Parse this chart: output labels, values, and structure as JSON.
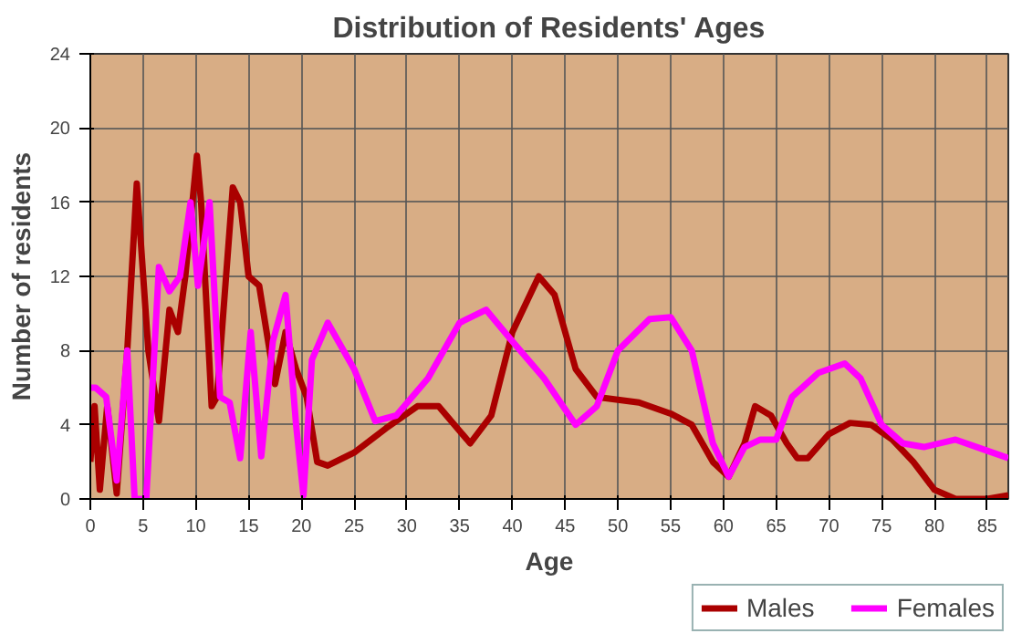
{
  "chart_data": {
    "type": "line",
    "title": "Distribution of Residents' Ages",
    "xlabel": "Age",
    "ylabel": "Number of residents",
    "xlim": [
      0,
      87
    ],
    "xticks": [
      0,
      5,
      10,
      15,
      20,
      25,
      30,
      35,
      40,
      45,
      50,
      55,
      60,
      65,
      70,
      75,
      80,
      85
    ],
    "ylim": [
      0,
      24
    ],
    "yticks": [
      0,
      4,
      8,
      12,
      16,
      20,
      24
    ],
    "grid": true,
    "legend": "bottom",
    "series": [
      {
        "name": "Males",
        "color": "#aa0000",
        "x": [
          0,
          0.4,
          0.9,
          1.6,
          2.5,
          3.5,
          4.4,
          5.5,
          6.5,
          7.5,
          8.3,
          9,
          10.1,
          10.5,
          11.5,
          12,
          13.5,
          14.2,
          15,
          16,
          17.5,
          18.5,
          19.5,
          20.5,
          21.5,
          22.5,
          25,
          28,
          31,
          33,
          36,
          38,
          40,
          42.5,
          44,
          46,
          48,
          52,
          55,
          57,
          59,
          60.5,
          62,
          63,
          64.5,
          66,
          67,
          68,
          70,
          72,
          74,
          76,
          78,
          80,
          82,
          85,
          87
        ],
        "values": [
          2,
          5,
          0.5,
          5,
          0.3,
          8,
          17,
          8,
          4.2,
          10.2,
          9,
          12,
          18.5,
          16,
          5,
          5.5,
          16.8,
          16,
          12,
          11.5,
          6.2,
          9,
          7,
          5.5,
          2,
          1.8,
          2.5,
          3.8,
          5,
          5,
          3,
          4.5,
          9,
          12,
          11,
          7,
          5.5,
          5.2,
          4.6,
          4,
          2,
          1.2,
          3,
          5,
          4.5,
          3,
          2.2,
          2.2,
          3.5,
          4.1,
          4,
          3.2,
          2,
          0.5,
          0,
          0,
          0.2
        ]
      },
      {
        "name": "Females",
        "color": "#ff00ff",
        "x": [
          0,
          0.5,
          1.5,
          2.5,
          3.5,
          4.2,
          5.3,
          6.5,
          7.5,
          8.5,
          9.5,
          10.2,
          11.3,
          12.3,
          13.2,
          14.2,
          15.2,
          16.2,
          17.3,
          18.5,
          19.5,
          20.2,
          21,
          22.5,
          25,
          27,
          29,
          32,
          35,
          37.5,
          40,
          43,
          46,
          48,
          50,
          53,
          55,
          57,
          59,
          60.5,
          62,
          63.5,
          65,
          66.5,
          69,
          71.5,
          73,
          75,
          77,
          79,
          82,
          85,
          87
        ],
        "values": [
          6,
          6,
          5.5,
          1,
          8,
          0,
          0,
          12.5,
          11.2,
          12,
          16,
          11.5,
          16,
          5.5,
          5.2,
          2.2,
          9,
          2.3,
          8.5,
          11,
          4,
          0.2,
          7.5,
          9.5,
          7,
          4.2,
          4.5,
          6.5,
          9.5,
          10.2,
          8.5,
          6.5,
          4,
          5,
          8,
          9.7,
          9.8,
          8,
          3,
          1.2,
          2.8,
          3.2,
          3.2,
          5.5,
          6.8,
          7.3,
          6.5,
          4,
          3,
          2.8,
          3.2,
          2.6,
          2.2
        ]
      }
    ]
  }
}
